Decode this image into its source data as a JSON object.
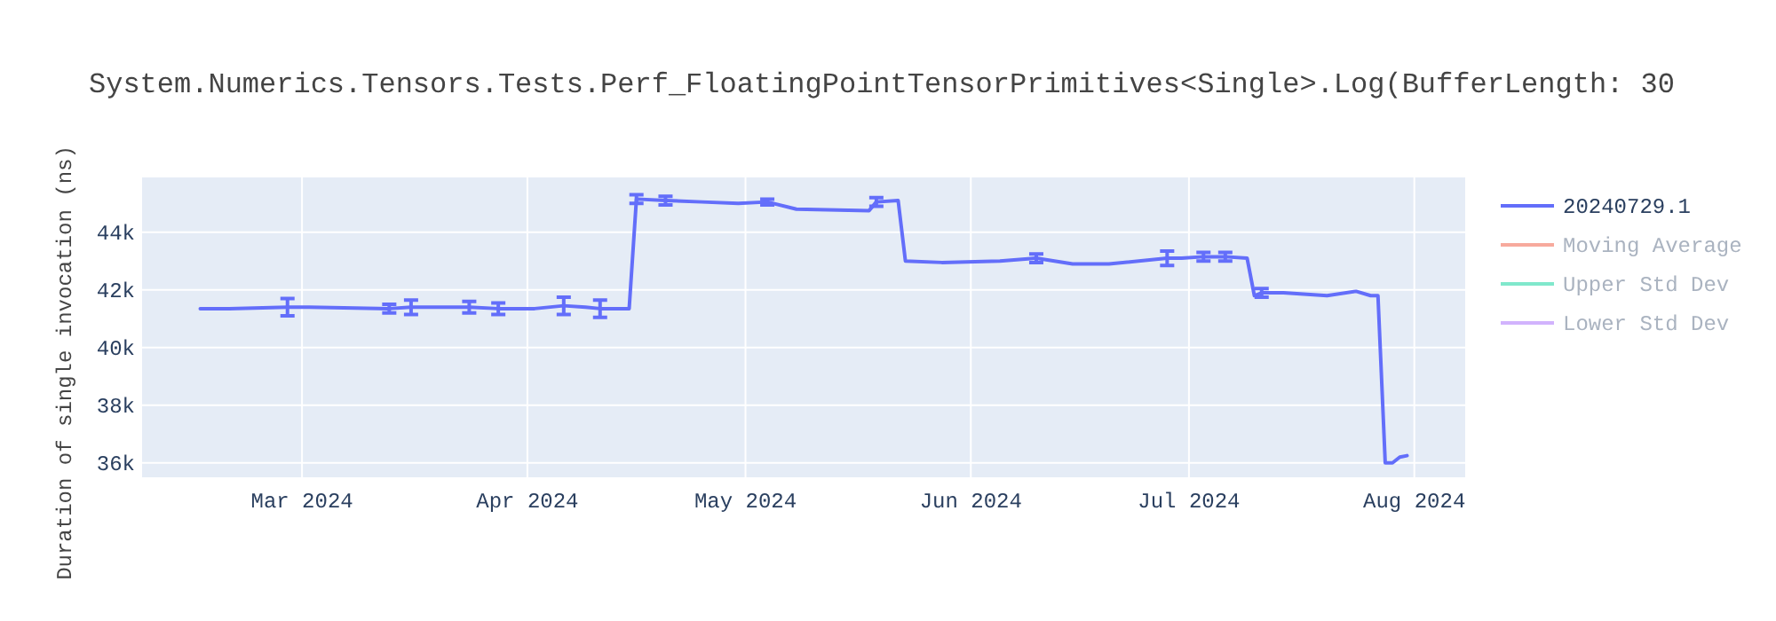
{
  "chart_data": {
    "type": "line",
    "title": "System.Numerics.Tensors.Tests.Perf_FloatingPointTensorPrimitives<Single>.Log(BufferLength: 30",
    "ylabel": "Duration of single invocation (ns)",
    "xlim": [
      "2024-02-08",
      "2024-08-08"
    ],
    "xticks": [
      {
        "value": "2024-03-01",
        "label": "Mar 2024"
      },
      {
        "value": "2024-04-01",
        "label": "Apr 2024"
      },
      {
        "value": "2024-05-01",
        "label": "May 2024"
      },
      {
        "value": "2024-06-01",
        "label": "Jun 2024"
      },
      {
        "value": "2024-07-01",
        "label": "Jul 2024"
      },
      {
        "value": "2024-08-01",
        "label": "Aug 2024"
      }
    ],
    "ylim": [
      35500,
      45900
    ],
    "yticks": [
      {
        "value": 36000,
        "label": "36k"
      },
      {
        "value": 38000,
        "label": "38k"
      },
      {
        "value": 40000,
        "label": "40k"
      },
      {
        "value": 42000,
        "label": "42k"
      },
      {
        "value": 44000,
        "label": "44k"
      }
    ],
    "grid": true,
    "legend": "top right",
    "marker": "none",
    "line_style": "solid",
    "series": [
      {
        "name": "20240729.1",
        "color": "#636efa",
        "x": [
          "2024-02-16",
          "2024-02-20",
          "2024-02-28",
          "2024-03-02",
          "2024-03-13",
          "2024-03-16",
          "2024-03-24",
          "2024-03-28",
          "2024-04-02",
          "2024-04-06",
          "2024-04-09",
          "2024-04-11",
          "2024-04-15",
          "2024-04-16",
          "2024-04-20",
          "2024-04-25",
          "2024-04-30",
          "2024-05-04",
          "2024-05-08",
          "2024-05-18",
          "2024-05-19",
          "2024-05-22",
          "2024-05-23",
          "2024-05-28",
          "2024-06-05",
          "2024-06-10",
          "2024-06-15",
          "2024-06-20",
          "2024-06-28",
          "2024-06-30",
          "2024-07-03",
          "2024-07-06",
          "2024-07-09",
          "2024-07-10",
          "2024-07-11",
          "2024-07-14",
          "2024-07-20",
          "2024-07-24",
          "2024-07-26",
          "2024-07-27",
          "2024-07-28",
          "2024-07-29",
          "2024-07-30",
          "2024-07-31"
        ],
        "values": [
          41350,
          41350,
          41400,
          41400,
          41350,
          41400,
          41400,
          41350,
          41350,
          41450,
          41400,
          41350,
          41350,
          45150,
          45100,
          45050,
          45000,
          45050,
          44800,
          44750,
          45050,
          45100,
          43000,
          42950,
          43000,
          43100,
          42900,
          42900,
          43100,
          43100,
          43150,
          43150,
          43100,
          41800,
          41900,
          41900,
          41800,
          41950,
          41800,
          41800,
          36000,
          36000,
          36200,
          36250
        ],
        "errors": [
          null,
          null,
          300,
          null,
          150,
          250,
          200,
          200,
          null,
          300,
          null,
          300,
          null,
          150,
          150,
          null,
          null,
          100,
          null,
          null,
          150,
          null,
          null,
          null,
          null,
          150,
          null,
          null,
          250,
          null,
          150,
          150,
          null,
          null,
          150,
          null,
          null,
          null,
          null,
          null,
          null,
          null,
          null,
          null
        ]
      },
      {
        "name": "Moving Average",
        "color": "#f7aa9d"
      },
      {
        "name": "Upper Std Dev",
        "color": "#80e8cc"
      },
      {
        "name": "Lower Std Dev",
        "color": "#d2b3fd"
      }
    ]
  }
}
